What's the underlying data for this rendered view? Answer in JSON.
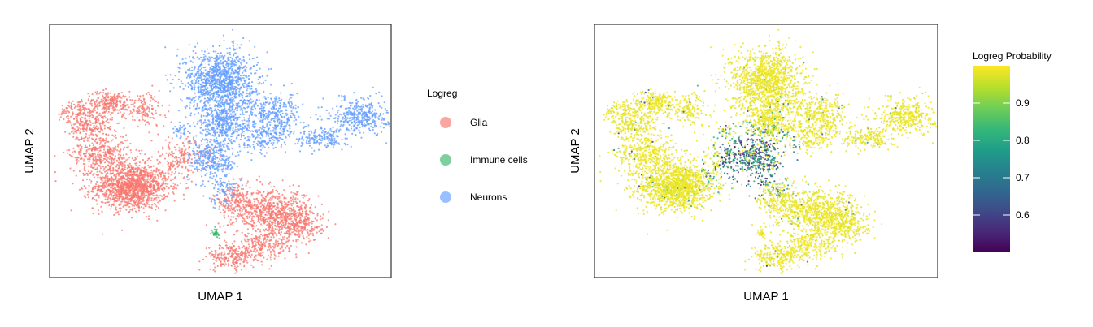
{
  "chart_data": [
    {
      "type": "scatter",
      "title": "",
      "xlabel": "UMAP 1",
      "ylabel": "UMAP 2",
      "xlim": [
        0,
        100
      ],
      "ylim": [
        0,
        100
      ],
      "grid": false,
      "legend_position": "right",
      "legend_title": "Logreg",
      "series": [
        {
          "name": "Glia",
          "color": "#F8766D",
          "clusters": [
            {
              "cx": 24,
              "cy": 36,
              "sx": 5.5,
              "sy": 4.5,
              "n": 1400
            },
            {
              "cx": 15,
              "cy": 49,
              "sx": 4.5,
              "sy": 4,
              "n": 380
            },
            {
              "cx": 12,
              "cy": 60,
              "sx": 3.2,
              "sy": 3,
              "n": 200
            },
            {
              "cx": 18,
              "cy": 69,
              "sx": 3.5,
              "sy": 2.3,
              "n": 240
            },
            {
              "cx": 8,
              "cy": 66,
              "sx": 2.5,
              "sy": 2.3,
              "n": 110
            },
            {
              "cx": 28,
              "cy": 66,
              "sx": 3,
              "sy": 3.5,
              "n": 130
            },
            {
              "cx": 38,
              "cy": 47,
              "sx": 4,
              "sy": 4,
              "n": 190
            },
            {
              "cx": 55,
              "cy": 30,
              "sx": 3.5,
              "sy": 3.5,
              "n": 200
            },
            {
              "cx": 66,
              "cy": 25,
              "sx": 6,
              "sy": 4.5,
              "n": 750
            },
            {
              "cx": 73,
              "cy": 20,
              "sx": 3.5,
              "sy": 3,
              "n": 200
            },
            {
              "cx": 62,
              "cy": 12,
              "sx": 4,
              "sy": 3,
              "n": 220
            },
            {
              "cx": 53,
              "cy": 8,
              "sx": 3.5,
              "sy": 2.5,
              "n": 200
            }
          ]
        },
        {
          "name": "Immune cells",
          "color": "#39B36A",
          "clusters": [
            {
              "cx": 48.5,
              "cy": 17.5,
              "sx": 0.5,
              "sy": 0.8,
              "n": 30
            }
          ]
        },
        {
          "name": "Neurons",
          "color": "#619CFF",
          "clusters": [
            {
              "cx": 50,
              "cy": 78,
              "sx": 5,
              "sy": 6,
              "n": 1150
            },
            {
              "cx": 51,
              "cy": 61,
              "sx": 4,
              "sy": 5,
              "n": 500
            },
            {
              "cx": 48,
              "cy": 47,
              "sx": 3.5,
              "sy": 4,
              "n": 320
            },
            {
              "cx": 66,
              "cy": 64,
              "sx": 4,
              "sy": 4.5,
              "n": 360
            },
            {
              "cx": 63,
              "cy": 55,
              "sx": 3,
              "sy": 3,
              "n": 150
            },
            {
              "cx": 80,
              "cy": 55,
              "sx": 3.5,
              "sy": 2,
              "n": 180
            },
            {
              "cx": 91,
              "cy": 64,
              "sx": 4,
              "sy": 3.5,
              "n": 360
            },
            {
              "cx": 51,
              "cy": 35,
              "sx": 2.5,
              "sy": 3.5,
              "n": 100
            },
            {
              "cx": 39,
              "cy": 58,
              "sx": 1.5,
              "sy": 1.5,
              "n": 40
            }
          ]
        }
      ]
    },
    {
      "type": "scatter",
      "title": "",
      "xlabel": "UMAP 1",
      "ylabel": "UMAP 2",
      "xlim": [
        0,
        100
      ],
      "ylim": [
        0,
        100
      ],
      "grid": false,
      "colorbar": {
        "title": "Logreg Probability",
        "palette": "viridis",
        "range": [
          0.5,
          1.0
        ],
        "ticks": [
          "0.6",
          "0.7",
          "0.8",
          "0.9"
        ],
        "tick_values": [
          0.6,
          0.7,
          0.8,
          0.9
        ]
      },
      "note_values": "Same cell layout as panel 1; probability ~0.98-1.0 across most cells, dropping to 0.5-0.8 in the central junction region where Glia and Neurons meet."
    }
  ],
  "legend": {
    "title": "Logreg",
    "items": [
      {
        "label": "Glia",
        "color": "#F8766D"
      },
      {
        "label": "Immune cells",
        "color": "#39B36A"
      },
      {
        "label": "Neurons",
        "color": "#619CFF"
      }
    ]
  },
  "colors": {
    "viridis": [
      "#440154",
      "#482878",
      "#3E4A89",
      "#31688E",
      "#26828E",
      "#1F9E89",
      "#35B779",
      "#6DCD59",
      "#B4DE2C",
      "#FDE725"
    ]
  }
}
